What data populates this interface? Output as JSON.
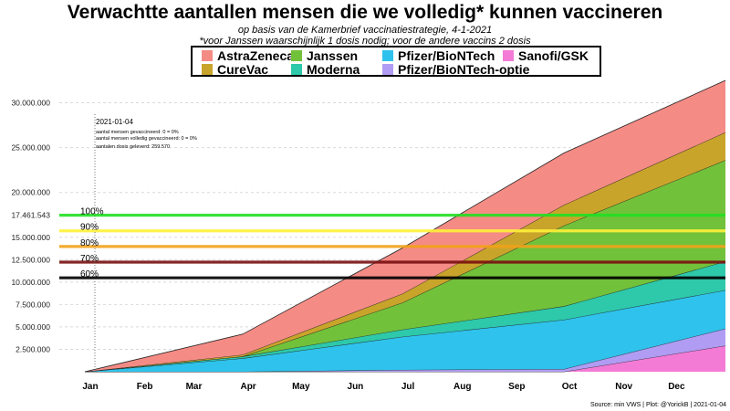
{
  "title": "Verwachtte aantallen mensen die we volledig* kunnen vaccineren",
  "subtitle_line1": "op basis van de Kamerbrief vaccinatiestrategie, 4-1-2021",
  "subtitle_line2": "*voor Janssen waarschijnlijk 1 dosis nodig; voor de andere vaccins 2 dosis",
  "source": "Source: min VWS | Plot: @YorickB |  2021-01-04",
  "chart_data": {
    "type": "area",
    "stacked": true,
    "x_months": [
      "Jan",
      "Feb",
      "Mar",
      "Apr",
      "May",
      "Jun",
      "Jul",
      "Aug",
      "Sep",
      "Oct",
      "Nov",
      "Dec"
    ],
    "x_points": [
      "2021-01-01",
      "2021-04-01",
      "2021-07-01",
      "2021-10-01",
      "2022-01-01"
    ],
    "ylim": [
      0,
      32500000
    ],
    "yticks": [
      2500000,
      5000000,
      7500000,
      10000000,
      12500000,
      15000000,
      20000000,
      25000000,
      30000000
    ],
    "ytick_labels": [
      "2.500.000",
      "5.000.000",
      "7.500.000",
      "10.000.000",
      "12.500.000",
      "15.000.000",
      "20.000.000",
      "25.000.000",
      "30.000.000"
    ],
    "extra_ytick": {
      "value": 17461543,
      "label": "17.461.543"
    },
    "grid": true,
    "legend_position": "top",
    "series": [
      {
        "name": "Sanofi/GSK",
        "color": "#f37bd6",
        "values": [
          0,
          0,
          0,
          0,
          2900000
        ]
      },
      {
        "name": "Pfizer/BioNTech-optie",
        "color": "#b19cf4",
        "values": [
          0,
          0,
          200000,
          300000,
          1900000
        ]
      },
      {
        "name": "Pfizer/BioNTech",
        "color": "#2fc2ec",
        "values": [
          0,
          1500000,
          3700000,
          5500000,
          4300000
        ]
      },
      {
        "name": "Moderna",
        "color": "#2ec8ab",
        "values": [
          0,
          200000,
          800000,
          1500000,
          3200000
        ]
      },
      {
        "name": "Janssen",
        "color": "#72c13a",
        "values": [
          0,
          0,
          3000000,
          9000000,
          11300000
        ]
      },
      {
        "name": "CureVac",
        "color": "#c9a42b",
        "values": [
          0,
          200000,
          1000000,
          2300000,
          3100000
        ]
      },
      {
        "name": "AstraZeneca",
        "color": "#f48b85",
        "values": [
          0,
          2300000,
          5100000,
          5800000,
          5800000
        ]
      }
    ],
    "legend_order": [
      "AstraZeneca",
      "Janssen",
      "Pfizer/BioNTech",
      "Sanofi/GSK",
      "CureVac",
      "Moderna",
      "Pfizer/BioNTech-optie"
    ],
    "thresholds": [
      {
        "label": "100%",
        "value": 17461543,
        "color": "#22e022"
      },
      {
        "label": "90%",
        "value": 15715389,
        "color": "#fff23a"
      },
      {
        "label": "80%",
        "value": 13969234,
        "color": "#f2a21a"
      },
      {
        "label": "70%",
        "value": 12223080,
        "color": "#7a0f0f"
      },
      {
        "label": "60%",
        "value": 10476926,
        "color": "#000000"
      }
    ],
    "annotation": {
      "date": "2021-01-04",
      "line1": "aantal mensen gevaccineerd: 0 = 0%",
      "line2": "aantal mensen volledig gevaccineerd: 0 = 0%",
      "line3": "aantalen dosis geleverd: 259.570"
    }
  }
}
